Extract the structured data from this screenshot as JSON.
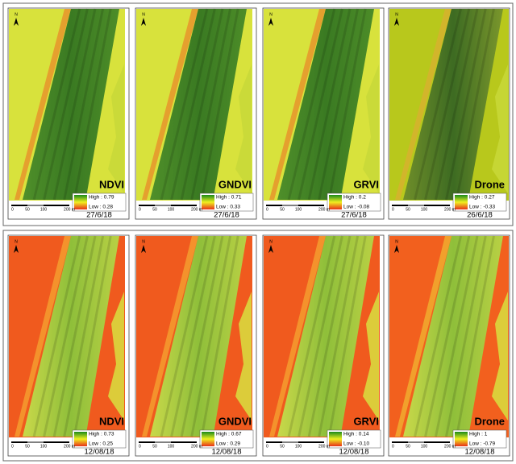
{
  "panels": [
    {
      "index": "NDVI",
      "high": "High : 0.79",
      "low": "Low : 0.28",
      "date": "27/6/18",
      "north": "N",
      "scale": [
        "0",
        "50",
        "100",
        "200 m"
      ]
    },
    {
      "index": "GNDVI",
      "high": "High : 0.71",
      "low": "Low : 0.33",
      "date": "27/6/18",
      "north": "N",
      "scale": [
        "0",
        "50",
        "100",
        "200 m"
      ]
    },
    {
      "index": "GRVI",
      "high": "High : 0.2",
      "low": "Low : -0.08",
      "date": "27/6/18",
      "north": "N",
      "scale": [
        "0",
        "50",
        "100",
        "200 m"
      ]
    },
    {
      "index": "Drone",
      "high": "High : 0.27",
      "low": "Low : -0.33",
      "date": "26/6/18",
      "north": "N",
      "scale": [
        "0",
        "50",
        "100",
        "200 m"
      ]
    },
    {
      "index": "NDVI",
      "high": "High : 0.73",
      "low": "Low : 0.25",
      "date": "12/08/18",
      "north": "N",
      "scale": [
        "0",
        "50",
        "100",
        "200 m"
      ]
    },
    {
      "index": "GNDVI",
      "high": "High : 0.67",
      "low": "Low : 0.29",
      "date": "12/08/18",
      "north": "N",
      "scale": [
        "0",
        "50",
        "100",
        "200 m"
      ]
    },
    {
      "index": "GRVI",
      "high": "High : 0.14",
      "low": "Low : -0.10",
      "date": "12/08/18",
      "north": "N",
      "scale": [
        "0",
        "50",
        "100",
        "200 m"
      ]
    },
    {
      "index": "Drone",
      "high": "High : 1",
      "low": "Low : -0.79",
      "date": "12/08/18",
      "north": "N",
      "scale": [
        "0",
        "50",
        "100",
        "200 m"
      ]
    }
  ]
}
